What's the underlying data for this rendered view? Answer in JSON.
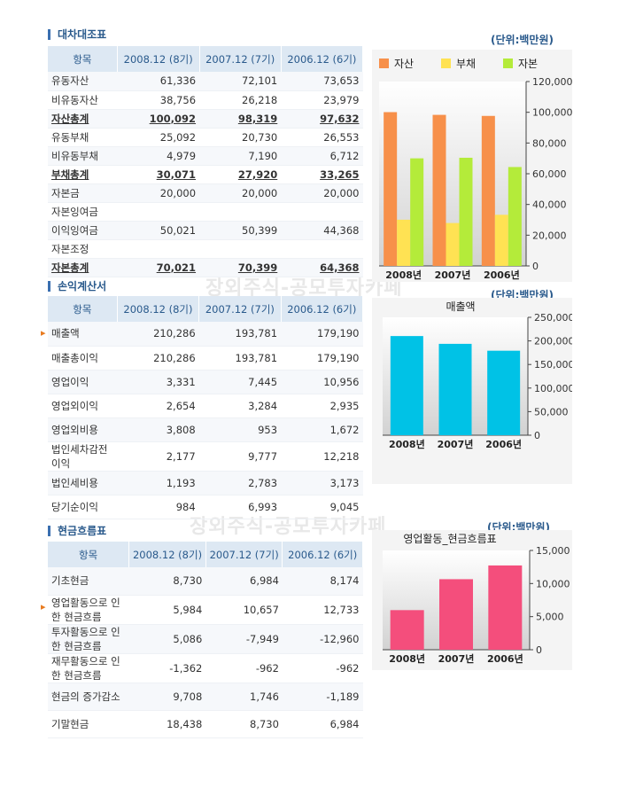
{
  "sections": {
    "balance": {
      "title": "대차대조표",
      "unit": "(단위:백만원)",
      "headers": [
        "항목",
        "2008.12 (8기)",
        "2007.12 (7기)",
        "2006.12 (6기)"
      ],
      "rows": [
        {
          "label": "유동자산",
          "values": [
            "61,336",
            "72,101",
            "73,653"
          ],
          "bold": false
        },
        {
          "label": "비유동자산",
          "values": [
            "38,756",
            "26,218",
            "23,979"
          ],
          "bold": false
        },
        {
          "label": "자산총계",
          "values": [
            "100,092",
            "98,319",
            "97,632"
          ],
          "bold": true
        },
        {
          "label": "유동부채",
          "values": [
            "25,092",
            "20,730",
            "26,553"
          ],
          "bold": false
        },
        {
          "label": "비유동부채",
          "values": [
            "4,979",
            "7,190",
            "6,712"
          ],
          "bold": false
        },
        {
          "label": "부채총계",
          "values": [
            "30,071",
            "27,920",
            "33,265"
          ],
          "bold": true
        },
        {
          "label": "자본금",
          "values": [
            "20,000",
            "20,000",
            "20,000"
          ],
          "bold": false
        },
        {
          "label": "자본잉여금",
          "values": [
            "",
            "",
            ""
          ],
          "bold": false
        },
        {
          "label": "이익잉여금",
          "values": [
            "50,021",
            "50,399",
            "44,368"
          ],
          "bold": false
        },
        {
          "label": "자본조정",
          "values": [
            "",
            "",
            ""
          ],
          "bold": false
        },
        {
          "label": "자본총계",
          "values": [
            "70,021",
            "70,399",
            "64,368"
          ],
          "bold": true
        }
      ]
    },
    "income": {
      "title": "손익계산서",
      "unit": "(단위:백만원)",
      "headers": [
        "항목",
        "2008.12 (8기)",
        "2007.12 (7기)",
        "2006.12 (6기)"
      ],
      "rows": [
        {
          "label": "매출액",
          "values": [
            "210,286",
            "193,781",
            "179,190"
          ]
        },
        {
          "label": "매출총이익",
          "values": [
            "210,286",
            "193,781",
            "179,190"
          ]
        },
        {
          "label": "영업이익",
          "values": [
            "3,331",
            "7,445",
            "10,956"
          ]
        },
        {
          "label": "영업외이익",
          "values": [
            "2,654",
            "3,284",
            "2,935"
          ]
        },
        {
          "label": "영업외비용",
          "values": [
            "3,808",
            "953",
            "1,672"
          ]
        },
        {
          "label": "법인세차감전 이익",
          "values": [
            "2,177",
            "9,777",
            "12,218"
          ]
        },
        {
          "label": "법인세비용",
          "values": [
            "1,193",
            "2,783",
            "3,173"
          ]
        },
        {
          "label": "당기순이익",
          "values": [
            "984",
            "6,993",
            "9,045"
          ]
        }
      ]
    },
    "cashflow": {
      "title": "현금흐름표",
      "unit": "(단위:백만원)",
      "headers": [
        "항목",
        "2008.12 (8기)",
        "2007.12 (7기)",
        "2006.12 (6기)"
      ],
      "rows": [
        {
          "label": "기초현금",
          "values": [
            "8,730",
            "6,984",
            "8,174"
          ]
        },
        {
          "label": "영업활동으로 인한 현금흐름",
          "values": [
            "5,984",
            "10,657",
            "12,733"
          ]
        },
        {
          "label": "투자활동으로 인한 현금흐름",
          "values": [
            "5,086",
            "-7,949",
            "-12,960"
          ]
        },
        {
          "label": "재무활동으로 인한 현금흐름",
          "values": [
            "-1,362",
            "-962",
            "-962"
          ]
        },
        {
          "label": "현금의 증가감소",
          "values": [
            "9,708",
            "1,746",
            "-1,189"
          ]
        },
        {
          "label": "기말현금",
          "values": [
            "18,438",
            "8,730",
            "6,984"
          ]
        }
      ]
    }
  },
  "watermark": "장외주식-공모투자카페",
  "colors": {
    "asset": "#f7904a",
    "debt": "#ffe253",
    "capital": "#b4eb3a",
    "sales": "#00c2e6",
    "cashflow": "#f44e7c"
  },
  "chart_data": [
    {
      "type": "bar",
      "title": "",
      "categories": [
        "2008년",
        "2007년",
        "2006년"
      ],
      "series": [
        {
          "name": "자산",
          "values": [
            100092,
            98319,
            97632
          ]
        },
        {
          "name": "부채",
          "values": [
            30071,
            27920,
            33265
          ]
        },
        {
          "name": "자본",
          "values": [
            70021,
            70399,
            64368
          ]
        }
      ],
      "ylim": [
        0,
        120000
      ],
      "yticks": [
        "0",
        "20,000",
        "40,000",
        "60,000",
        "80,000",
        "100,000",
        "120,000"
      ],
      "legend": "top"
    },
    {
      "type": "bar",
      "title": "매출액",
      "categories": [
        "2008년",
        "2007년",
        "2006년"
      ],
      "series": [
        {
          "values": [
            210286,
            193781,
            179190
          ]
        }
      ],
      "ylim": [
        0,
        250000
      ],
      "yticks": [
        "0",
        "50,000",
        "100,000",
        "150,000",
        "200,000",
        "250,000"
      ]
    },
    {
      "type": "bar",
      "title": "영업활동_현금흐름표",
      "categories": [
        "2008년",
        "2007년",
        "2006년"
      ],
      "series": [
        {
          "values": [
            5984,
            10657,
            12733
          ]
        }
      ],
      "ylim": [
        0,
        15000
      ],
      "yticks": [
        "0",
        "5,000",
        "10,000",
        "15,000"
      ]
    }
  ]
}
